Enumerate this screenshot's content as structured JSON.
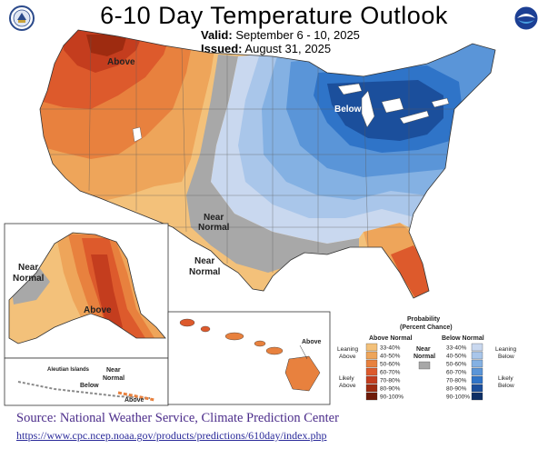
{
  "header": {
    "title": "6-10 Day Temperature Outlook",
    "valid_label": "Valid:",
    "valid_value": "September 6 - 10, 2025",
    "issued_label": "Issued:",
    "issued_value": "August 31, 2025"
  },
  "logos": {
    "left": "doc-seal-icon",
    "right": "noaa-logo-icon"
  },
  "map_labels": {
    "above_nw": "Above",
    "below_ne": "Below",
    "near_normal_1a": "Near",
    "near_normal_1b": "Normal",
    "near_normal_2a": "Near",
    "near_normal_2b": "Normal",
    "ak_near_a": "Near",
    "ak_near_b": "Normal",
    "ak_above": "Above",
    "hi_above": "Above",
    "aleutian_title": "Aleutian Islands",
    "aleutian_near_a": "Near",
    "aleutian_near_b": "Normal",
    "aleutian_below": "Below",
    "aleutian_above": "Above"
  },
  "legend": {
    "title_a": "Probability",
    "title_b": "(Percent Chance)",
    "above_header": "Above Normal",
    "below_header": "Below Normal",
    "near_header_a": "Near",
    "near_header_b": "Normal",
    "leaning_above_a": "Leaning",
    "leaning_above_b": "Above",
    "likely_above_a": "Likely",
    "likely_above_b": "Above",
    "leaning_below_a": "Leaning",
    "leaning_below_b": "Below",
    "likely_below_a": "Likely",
    "likely_below_b": "Below",
    "ranges": [
      "33-40%",
      "40-50%",
      "50-60%",
      "60-70%",
      "70-80%",
      "80-90%",
      "90-100%"
    ],
    "above_colors": [
      "#f3c17a",
      "#eea55a",
      "#e8813e",
      "#dd5a2c",
      "#c43d1e",
      "#9e2b10",
      "#6e1a08"
    ],
    "below_colors": [
      "#c9d8ef",
      "#a9c6ea",
      "#84b1e3",
      "#5a95d8",
      "#2f74c8",
      "#1b4f9c",
      "#0e2f66"
    ],
    "near_color": "#a8a8a8"
  },
  "source": {
    "line": "Source: National Weather Service, Climate Prediction Center",
    "url": "https://www.cpc.ncep.noaa.gov/products/predictions/610day/index.php"
  }
}
